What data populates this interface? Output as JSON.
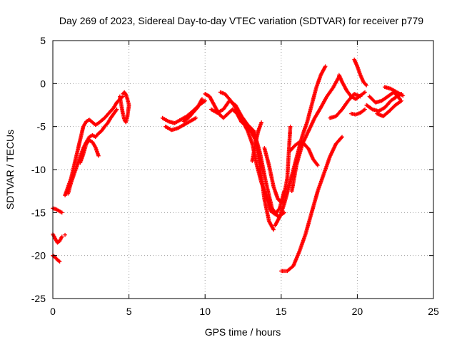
{
  "chart_data": {
    "type": "scatter",
    "title": "Day 269 of 2023, Sidereal Day-to-day VTEC variation (SDTVAR) for receiver p779",
    "xlabel": "GPS time / hours",
    "ylabel": "SDTVAR / TECUs",
    "xlim": [
      0,
      25
    ],
    "ylim": [
      -25,
      5
    ],
    "xticks": [
      "0",
      "5",
      "10",
      "15",
      "20",
      "25"
    ],
    "yticks": [
      "5",
      "0",
      "-5",
      "-10",
      "-15",
      "-20",
      "-25"
    ],
    "grid": true,
    "marker": "plus",
    "color": "#ff0000",
    "series": [
      {
        "x": [
          0.0,
          0.15,
          0.3,
          0.45,
          0.6
        ],
        "y": [
          -17.5,
          -18.0,
          -18.5,
          -18.3,
          -17.8
        ]
      },
      {
        "x": [
          0.0,
          0.2,
          0.4,
          0.6
        ],
        "y": [
          -14.5,
          -14.6,
          -14.8,
          -15.0
        ]
      },
      {
        "x": [
          0.0,
          0.15,
          0.3,
          0.45
        ],
        "y": [
          -20.0,
          -20.2,
          -20.5,
          -20.7
        ]
      },
      {
        "x": [
          0.8
        ],
        "y": [
          -17.6
        ]
      },
      {
        "x": [
          0.8,
          1.0,
          1.2,
          1.4,
          1.6,
          1.8,
          2.0,
          2.2,
          2.4,
          2.6,
          2.8,
          3.0,
          3.2,
          3.4,
          3.6,
          3.8,
          4.0,
          4.2,
          4.4,
          4.6
        ],
        "y": [
          -13.0,
          -12.0,
          -11.0,
          -9.5,
          -8.0,
          -6.5,
          -5.0,
          -4.4,
          -4.2,
          -4.5,
          -4.8,
          -4.6,
          -4.3,
          -4.0,
          -3.6,
          -3.2,
          -2.8,
          -2.2,
          -1.8,
          -1.5
        ]
      },
      {
        "x": [
          1.0,
          1.2,
          1.4,
          1.6,
          1.8,
          2.0,
          2.2,
          2.4,
          2.6,
          2.8,
          3.0,
          3.2,
          3.4,
          3.6,
          3.8,
          4.0,
          4.2
        ],
        "y": [
          -12.8,
          -11.5,
          -10.5,
          -9.5,
          -8.5,
          -7.5,
          -6.8,
          -6.2,
          -6.0,
          -6.2,
          -5.8,
          -5.5,
          -5.0,
          -4.6,
          -4.0,
          -3.5,
          -3.0
        ]
      },
      {
        "x": [
          1.8,
          2.0,
          2.2,
          2.4,
          2.6,
          2.8,
          3.0
        ],
        "y": [
          -9.2,
          -8.2,
          -7.0,
          -6.6,
          -6.8,
          -7.4,
          -8.4
        ]
      },
      {
        "x": [
          4.4,
          4.5,
          4.6,
          4.7,
          4.8,
          4.9,
          5.0
        ],
        "y": [
          -1.5,
          -2.5,
          -3.5,
          -4.2,
          -4.5,
          -3.8,
          -2.5
        ]
      },
      {
        "x": [
          4.6,
          4.7,
          4.8,
          4.9,
          5.0
        ],
        "y": [
          -1.2,
          -1.0,
          -1.3,
          -1.8,
          -2.5
        ]
      },
      {
        "x": [
          7.2,
          7.6,
          8.0,
          8.4,
          8.8,
          9.2,
          9.6,
          10.0
        ],
        "y": [
          -4.0,
          -4.4,
          -4.6,
          -4.2,
          -3.8,
          -3.2,
          -2.5,
          -2.0
        ]
      },
      {
        "x": [
          7.4,
          7.8,
          8.2,
          8.6,
          9.0,
          9.4
        ],
        "y": [
          -5.0,
          -5.4,
          -5.2,
          -4.8,
          -4.4,
          -4.0
        ]
      },
      {
        "x": [
          8.6,
          8.9,
          9.2,
          9.5,
          9.8
        ],
        "y": [
          -4.4,
          -4.0,
          -3.4,
          -2.8,
          -1.8
        ]
      },
      {
        "x": [
          10.0,
          10.3,
          10.6,
          10.9,
          11.2,
          11.5,
          11.8,
          12.1,
          12.4,
          12.7,
          13.0,
          13.3,
          13.6,
          13.9,
          14.2,
          14.5
        ],
        "y": [
          -1.2,
          -1.5,
          -2.5,
          -3.5,
          -4.0,
          -3.5,
          -3.0,
          -3.5,
          -4.5,
          -4.8,
          -5.5,
          -6.5,
          -9.5,
          -13.5,
          -16.0,
          -17.0
        ]
      },
      {
        "x": [
          10.4,
          10.8,
          11.2,
          11.6,
          12.0,
          12.4,
          12.8,
          13.2,
          13.6,
          14.0,
          14.4,
          14.8,
          15.2
        ],
        "y": [
          -3.0,
          -3.4,
          -3.0,
          -2.0,
          -2.5,
          -3.8,
          -4.8,
          -5.5,
          -8.0,
          -11.5,
          -14.5,
          -15.5,
          -15.0
        ]
      },
      {
        "x": [
          11.0,
          11.3,
          11.6,
          11.9,
          12.2,
          12.5,
          12.8,
          13.1,
          13.4,
          13.7,
          14.0,
          14.3,
          14.6,
          14.9,
          15.2
        ],
        "y": [
          -1.0,
          -1.2,
          -1.8,
          -2.5,
          -3.5,
          -4.5,
          -5.5,
          -7.0,
          -9.5,
          -11.5,
          -13.0,
          -14.8,
          -15.2,
          -14.5,
          -12.5
        ]
      },
      {
        "x": [
          13.1,
          13.3,
          13.5,
          13.7
        ],
        "y": [
          -9.0,
          -7.0,
          -5.5,
          -4.5
        ]
      },
      {
        "x": [
          13.9,
          14.2,
          14.5,
          14.8,
          15.1,
          15.4,
          15.6
        ],
        "y": [
          -7.5,
          -9.5,
          -12.0,
          -13.5,
          -13.8,
          -11.0,
          -5.0
        ]
      },
      {
        "x": [
          14.6,
          14.9,
          15.2,
          15.5,
          15.8,
          16.1,
          16.4,
          16.7,
          17.0,
          17.3,
          17.6,
          17.9
        ],
        "y": [
          -16.5,
          -15.5,
          -14.0,
          -12.0,
          -10.0,
          -8.0,
          -6.0,
          -4.5,
          -2.5,
          -0.5,
          1.0,
          2.0
        ]
      },
      {
        "x": [
          15.7,
          16.0,
          16.4,
          16.8,
          17.2,
          17.6,
          18.0,
          18.4,
          18.8
        ],
        "y": [
          -12.5,
          -9.5,
          -7.0,
          -5.5,
          -4.0,
          -2.8,
          -1.5,
          -0.5,
          0.8
        ]
      },
      {
        "x": [
          15.0,
          15.4,
          15.8,
          16.2,
          16.6,
          17.0,
          17.4,
          17.8,
          18.2,
          18.6,
          19.0
        ],
        "y": [
          -21.8,
          -21.8,
          -21.2,
          -19.5,
          -17.5,
          -15.0,
          -12.5,
          -10.5,
          -8.5,
          -7.0,
          -6.2
        ]
      },
      {
        "x": [
          15.6,
          15.9,
          16.2,
          16.5,
          16.8,
          17.1,
          17.4
        ],
        "y": [
          -7.8,
          -7.2,
          -6.8,
          -7.0,
          -7.6,
          -8.8,
          -9.5
        ]
      },
      {
        "x": [
          18.2,
          18.6,
          19.0,
          19.4,
          19.8,
          20.2
        ],
        "y": [
          -4.0,
          -3.8,
          -3.0,
          -2.0,
          -1.2,
          -1.5
        ]
      },
      {
        "x": [
          18.8,
          19.0,
          19.3,
          19.6,
          19.9,
          20.2,
          20.5
        ],
        "y": [
          1.0,
          0.2,
          -0.8,
          -1.5,
          -1.8,
          -1.4,
          -1.0
        ]
      },
      {
        "x": [
          19.8,
          20.0,
          20.2,
          20.4,
          20.6
        ],
        "y": [
          2.8,
          2.0,
          1.0,
          0.2,
          -0.2
        ]
      },
      {
        "x": [
          19.6,
          19.9,
          20.2,
          20.5
        ],
        "y": [
          -3.5,
          -3.6,
          -3.4,
          -3.0
        ]
      },
      {
        "x": [
          20.6,
          21.0,
          21.4,
          21.8,
          22.2,
          22.6,
          22.9
        ],
        "y": [
          -2.5,
          -3.0,
          -3.2,
          -2.8,
          -2.0,
          -1.5,
          -1.2
        ]
      },
      {
        "x": [
          20.8,
          21.2,
          21.6,
          22.0,
          22.4,
          22.8
        ],
        "y": [
          -1.5,
          -2.2,
          -2.0,
          -1.5,
          -1.0,
          -1.8
        ]
      },
      {
        "x": [
          21.3,
          21.7,
          22.1,
          22.5,
          22.9
        ],
        "y": [
          -3.5,
          -3.8,
          -3.2,
          -2.5,
          -2.0
        ]
      },
      {
        "x": [
          21.8,
          22.2,
          22.6,
          23.0
        ],
        "y": [
          -0.4,
          -0.6,
          -1.0,
          -1.4
        ]
      }
    ]
  }
}
